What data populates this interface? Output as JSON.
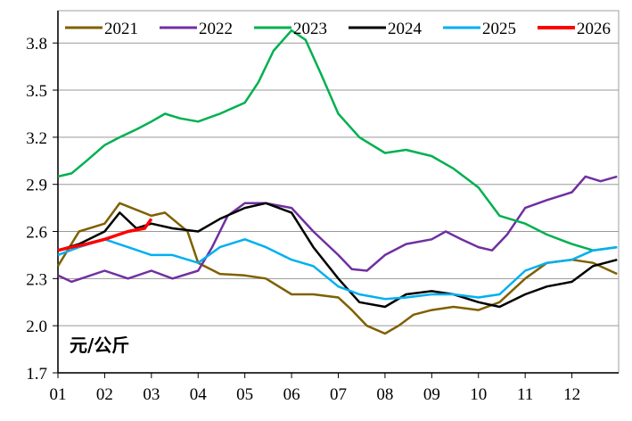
{
  "chart_data": {
    "type": "line",
    "title": "",
    "xlabel": "",
    "ylabel": "",
    "unit_label": "元/公斤",
    "ylim": [
      1.7,
      4.0
    ],
    "yticks": [
      1.7,
      2.0,
      2.3,
      2.6,
      2.9,
      3.2,
      3.5,
      3.8
    ],
    "ytick_labels": [
      "1.7",
      "2.0",
      "2.3",
      "2.6",
      "2.9",
      "3.2",
      "3.5",
      "3.8"
    ],
    "xtick_labels": [
      "01",
      "02",
      "03",
      "04",
      "05",
      "06",
      "07",
      "08",
      "09",
      "10",
      "11",
      "12"
    ],
    "grid": "horizontal",
    "legend_position": "top",
    "series": [
      {
        "name": "2021",
        "color": "#7f6000",
        "points": [
          [
            "01-01",
            2.38
          ],
          [
            "01-15",
            2.6
          ],
          [
            "02-01",
            2.65
          ],
          [
            "02-10",
            2.78
          ],
          [
            "03-01",
            2.7
          ],
          [
            "03-10",
            2.72
          ],
          [
            "03-25",
            2.6
          ],
          [
            "04-01",
            2.4
          ],
          [
            "04-15",
            2.33
          ],
          [
            "05-01",
            2.32
          ],
          [
            "05-15",
            2.3
          ],
          [
            "06-01",
            2.2
          ],
          [
            "06-15",
            2.2
          ],
          [
            "07-01",
            2.18
          ],
          [
            "07-10",
            2.1
          ],
          [
            "07-20",
            2.0
          ],
          [
            "08-01",
            1.95
          ],
          [
            "08-10",
            2.0
          ],
          [
            "08-20",
            2.07
          ],
          [
            "09-01",
            2.1
          ],
          [
            "09-15",
            2.12
          ],
          [
            "10-01",
            2.1
          ],
          [
            "10-15",
            2.15
          ],
          [
            "11-01",
            2.3
          ],
          [
            "11-15",
            2.4
          ],
          [
            "12-01",
            2.42
          ],
          [
            "12-15",
            2.4
          ],
          [
            "12-31",
            2.33
          ]
        ]
      },
      {
        "name": "2022",
        "color": "#7030a0",
        "points": [
          [
            "01-01",
            2.32
          ],
          [
            "01-10",
            2.28
          ],
          [
            "02-01",
            2.35
          ],
          [
            "02-15",
            2.3
          ],
          [
            "03-01",
            2.35
          ],
          [
            "03-15",
            2.3
          ],
          [
            "04-01",
            2.35
          ],
          [
            "04-10",
            2.5
          ],
          [
            "04-20",
            2.7
          ],
          [
            "05-01",
            2.78
          ],
          [
            "05-15",
            2.78
          ],
          [
            "06-01",
            2.75
          ],
          [
            "06-15",
            2.6
          ],
          [
            "07-01",
            2.45
          ],
          [
            "07-10",
            2.36
          ],
          [
            "07-20",
            2.35
          ],
          [
            "08-01",
            2.45
          ],
          [
            "08-15",
            2.52
          ],
          [
            "09-01",
            2.55
          ],
          [
            "09-10",
            2.6
          ],
          [
            "09-20",
            2.55
          ],
          [
            "10-01",
            2.5
          ],
          [
            "10-10",
            2.48
          ],
          [
            "10-20",
            2.58
          ],
          [
            "11-01",
            2.75
          ],
          [
            "11-15",
            2.8
          ],
          [
            "12-01",
            2.85
          ],
          [
            "12-10",
            2.95
          ],
          [
            "12-20",
            2.92
          ],
          [
            "12-31",
            2.95
          ]
        ]
      },
      {
        "name": "2023",
        "color": "#00b050",
        "points": [
          [
            "01-01",
            2.95
          ],
          [
            "01-10",
            2.97
          ],
          [
            "01-20",
            3.05
          ],
          [
            "02-01",
            3.15
          ],
          [
            "02-10",
            3.2
          ],
          [
            "02-20",
            3.25
          ],
          [
            "03-01",
            3.3
          ],
          [
            "03-10",
            3.35
          ],
          [
            "03-20",
            3.32
          ],
          [
            "04-01",
            3.3
          ],
          [
            "04-15",
            3.35
          ],
          [
            "05-01",
            3.42
          ],
          [
            "05-10",
            3.55
          ],
          [
            "05-20",
            3.75
          ],
          [
            "06-01",
            3.88
          ],
          [
            "06-10",
            3.82
          ],
          [
            "06-20",
            3.6
          ],
          [
            "07-01",
            3.35
          ],
          [
            "07-15",
            3.2
          ],
          [
            "08-01",
            3.1
          ],
          [
            "08-15",
            3.12
          ],
          [
            "09-01",
            3.08
          ],
          [
            "09-15",
            3.0
          ],
          [
            "10-01",
            2.88
          ],
          [
            "10-15",
            2.7
          ],
          [
            "11-01",
            2.65
          ],
          [
            "11-15",
            2.58
          ],
          [
            "12-01",
            2.52
          ],
          [
            "12-15",
            2.48
          ],
          [
            "12-31",
            2.5
          ]
        ]
      },
      {
        "name": "2024",
        "color": "#000000",
        "points": [
          [
            "01-01",
            2.48
          ],
          [
            "01-15",
            2.52
          ],
          [
            "02-01",
            2.6
          ],
          [
            "02-10",
            2.72
          ],
          [
            "02-20",
            2.62
          ],
          [
            "03-01",
            2.65
          ],
          [
            "03-15",
            2.62
          ],
          [
            "04-01",
            2.6
          ],
          [
            "04-15",
            2.68
          ],
          [
            "05-01",
            2.75
          ],
          [
            "05-15",
            2.78
          ],
          [
            "06-01",
            2.72
          ],
          [
            "06-15",
            2.5
          ],
          [
            "07-01",
            2.3
          ],
          [
            "07-15",
            2.15
          ],
          [
            "08-01",
            2.12
          ],
          [
            "08-15",
            2.2
          ],
          [
            "09-01",
            2.22
          ],
          [
            "09-15",
            2.2
          ],
          [
            "10-01",
            2.15
          ],
          [
            "10-15",
            2.12
          ],
          [
            "11-01",
            2.2
          ],
          [
            "11-15",
            2.25
          ],
          [
            "12-01",
            2.28
          ],
          [
            "12-15",
            2.38
          ],
          [
            "12-31",
            2.42
          ]
        ]
      },
      {
        "name": "2025",
        "color": "#00b0f0",
        "points": [
          [
            "01-01",
            2.45
          ],
          [
            "01-15",
            2.5
          ],
          [
            "02-01",
            2.55
          ],
          [
            "02-15",
            2.5
          ],
          [
            "03-01",
            2.45
          ],
          [
            "03-15",
            2.45
          ],
          [
            "04-01",
            2.4
          ],
          [
            "04-15",
            2.5
          ],
          [
            "05-01",
            2.55
          ],
          [
            "05-15",
            2.5
          ],
          [
            "06-01",
            2.42
          ],
          [
            "06-15",
            2.38
          ],
          [
            "07-01",
            2.25
          ],
          [
            "07-15",
            2.2
          ],
          [
            "08-01",
            2.17
          ],
          [
            "08-15",
            2.18
          ],
          [
            "09-01",
            2.2
          ],
          [
            "09-15",
            2.2
          ],
          [
            "10-01",
            2.18
          ],
          [
            "10-15",
            2.2
          ],
          [
            "11-01",
            2.35
          ],
          [
            "11-15",
            2.4
          ],
          [
            "12-01",
            2.42
          ],
          [
            "12-15",
            2.48
          ],
          [
            "12-31",
            2.5
          ]
        ]
      },
      {
        "name": "2026",
        "color": "#ff0000",
        "points": [
          [
            "01-01",
            2.48
          ],
          [
            "01-10",
            2.5
          ],
          [
            "01-20",
            2.52
          ],
          [
            "02-01",
            2.55
          ],
          [
            "02-15",
            2.6
          ],
          [
            "02-25",
            2.62
          ],
          [
            "03-01",
            2.68
          ]
        ]
      }
    ]
  }
}
